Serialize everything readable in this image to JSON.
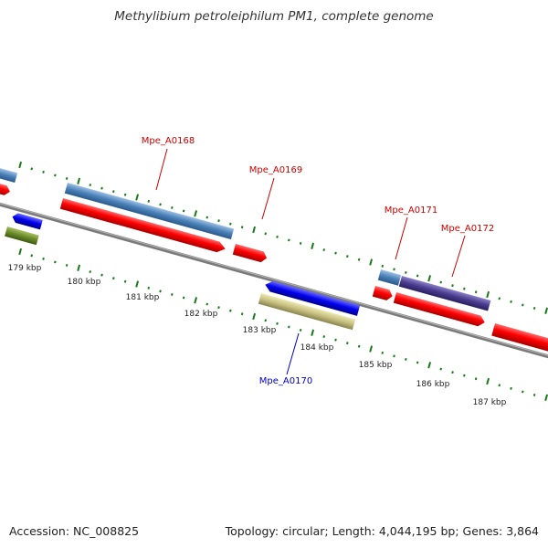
{
  "title": "Methylibium petroleiphilum PM1, complete genome",
  "footer": {
    "accession": "Accession: NC_008825",
    "summary": "Topology: circular; Length: 4,044,195 bp; Genes: 3,864"
  },
  "colors": {
    "backbone": "#7a7a7a",
    "tick": "#1a7a1a",
    "label_red": "#cc0000",
    "label_blue": "#0000cc"
  },
  "kbp_labels": [
    "179 kbp",
    "180 kbp",
    "181 kbp",
    "182 kbp",
    "183 kbp",
    "184 kbp",
    "185 kbp",
    "186 kbp",
    "187 kbp"
  ],
  "gene_labels": [
    {
      "id": "g168",
      "text": "Mpe_A0168",
      "color": "#cc0000"
    },
    {
      "id": "g169",
      "text": "Mpe_A0169",
      "color": "#cc0000"
    },
    {
      "id": "g170",
      "text": "Mpe_A0170",
      "color": "#0000cc"
    },
    {
      "id": "g171",
      "text": "Mpe_A0171",
      "color": "#cc0000"
    },
    {
      "id": "g172",
      "text": "Mpe_A0172",
      "color": "#cc0000"
    }
  ]
}
